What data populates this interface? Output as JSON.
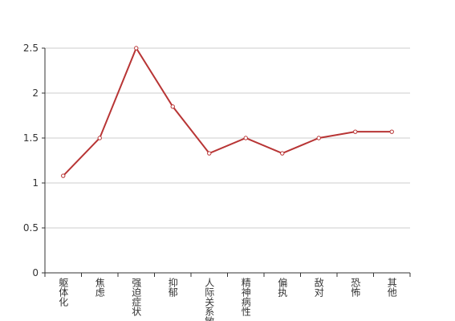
{
  "chart_data": {
    "type": "line",
    "categories": [
      "躯体化",
      "焦虑",
      "强迫症状",
      "抑郁",
      "人际关系敏感",
      "精神病性",
      "偏执",
      "敌对",
      "恐怖",
      "其他"
    ],
    "series": [
      {
        "color": "#b83535",
        "values": [
          1.08,
          1.5,
          2.5,
          1.85,
          1.33,
          1.5,
          1.33,
          1.5,
          1.57,
          1.57
        ]
      }
    ],
    "ylim": [
      0,
      2.5
    ],
    "yticks": [
      0,
      0.5,
      1,
      1.5,
      2,
      2.5
    ],
    "grid": true
  }
}
